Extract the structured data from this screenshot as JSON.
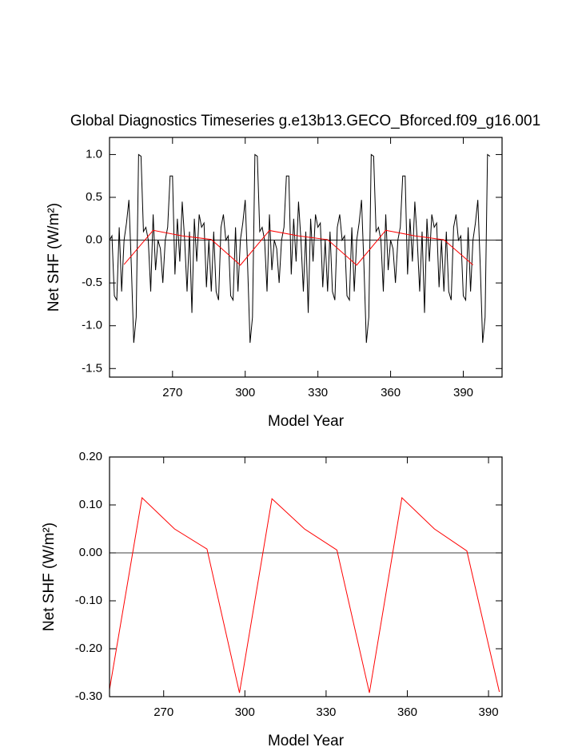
{
  "chart_data": [
    {
      "type": "line",
      "title": "Global Diagnostics Timeseries g.e13b13.GECO_Bforced.f09_g16.001",
      "xlabel": "Model Year",
      "ylabel": "Net SHF (W/m²)",
      "xlim": [
        244,
        406
      ],
      "xticks": [
        270,
        300,
        330,
        360,
        390
      ],
      "ylim": [
        -1.6,
        1.2
      ],
      "yticks": [
        {
          "value": -1.5,
          "label": "-1.5"
        },
        {
          "value": -1,
          "label": "-1.0"
        },
        {
          "value": -0.5,
          "label": "-0.5"
        },
        {
          "value": 0,
          "label": "0.0"
        },
        {
          "value": 0.5,
          "label": "0.5"
        },
        {
          "value": 1,
          "label": "1.0"
        }
      ],
      "hline": 0,
      "series": [
        {
          "color": "#000000",
          "x": [
            244,
            245,
            246,
            247,
            248,
            249,
            250,
            251,
            252,
            253,
            254,
            255,
            256,
            257,
            258,
            259,
            260,
            261,
            262,
            263,
            264,
            265,
            266,
            267,
            268,
            269,
            270,
            271,
            272,
            273,
            274,
            275,
            276,
            277,
            278,
            279,
            280,
            281,
            282,
            283,
            284,
            285,
            286,
            287,
            288,
            289,
            290,
            291,
            292,
            293,
            294,
            295,
            296,
            297,
            298,
            299,
            300,
            301,
            302,
            303,
            304,
            305,
            306,
            307,
            308,
            309,
            310,
            311,
            312,
            313,
            314,
            315,
            316,
            317,
            318,
            319,
            320,
            321,
            322,
            323,
            324,
            325,
            326,
            327,
            328,
            329,
            330,
            331,
            332,
            333,
            334,
            335,
            336,
            337,
            338,
            339,
            340,
            341,
            342,
            343,
            344,
            345,
            346,
            347,
            348,
            349,
            350,
            351,
            352,
            353,
            354,
            355,
            356,
            357,
            358,
            359,
            360,
            361,
            362,
            363,
            364,
            365,
            366,
            367,
            368,
            369,
            370,
            371,
            372,
            373,
            374,
            375,
            376,
            377,
            378,
            379,
            380,
            381,
            382,
            383,
            384,
            385,
            386,
            387,
            388,
            389,
            390,
            391,
            392,
            393,
            394,
            395,
            396,
            397,
            398,
            399,
            400,
            401
          ],
          "values": [
            0.0,
            0.05,
            -0.65,
            -0.7,
            0.15,
            -0.6,
            0.0,
            0.2,
            0.47,
            -0.3,
            -1.2,
            -0.9,
            1.0,
            0.98,
            0.1,
            0.15,
            0.0,
            -0.6,
            0.3,
            -0.35,
            0.0,
            -0.1,
            -0.5,
            0.0,
            0.15,
            0.75,
            0.75,
            -0.4,
            0.25,
            -0.25,
            0.45,
            0.0,
            -0.6,
            0.1,
            -0.85,
            0.25,
            -0.25,
            0.3,
            0.15,
            0.2,
            -0.55,
            0.0,
            -0.6,
            0.1,
            -0.6,
            -0.7,
            0.15,
            0.3,
            0.0,
            0.05,
            -0.65,
            -0.7,
            0.15,
            -0.6,
            0.0,
            0.2,
            0.47,
            -0.3,
            -1.2,
            -0.9,
            1.0,
            0.98,
            0.1,
            0.15,
            0.0,
            -0.6,
            0.3,
            -0.35,
            0.0,
            -0.1,
            -0.5,
            0.0,
            0.15,
            0.75,
            0.75,
            -0.4,
            0.25,
            -0.25,
            0.45,
            0.0,
            -0.6,
            0.1,
            -0.85,
            0.25,
            -0.25,
            0.3,
            0.15,
            0.2,
            -0.55,
            0.0,
            -0.6,
            0.1,
            -0.6,
            -0.7,
            0.15,
            0.3,
            0.0,
            0.05,
            -0.65,
            -0.7,
            0.15,
            -0.6,
            0.0,
            0.2,
            0.47,
            -0.3,
            -1.2,
            -0.9,
            1.0,
            0.98,
            0.1,
            0.15,
            0.0,
            -0.6,
            0.3,
            -0.35,
            0.0,
            -0.1,
            -0.5,
            0.0,
            0.15,
            0.75,
            0.75,
            -0.4,
            0.25,
            -0.25,
            0.45,
            0.0,
            -0.6,
            0.1,
            -0.85,
            0.25,
            -0.25,
            0.3,
            0.15,
            0.2,
            -0.55,
            0.0,
            -0.6,
            0.1,
            -0.6,
            -0.7,
            0.15,
            0.3,
            0.0,
            0.05,
            -0.65,
            -0.7,
            0.15,
            -0.6,
            0.0,
            0.2,
            0.47,
            -0.3,
            -1.2,
            -0.9,
            1.0,
            0.98
          ]
        },
        {
          "color": "#ff0000",
          "x": [
            250,
            262,
            274,
            286,
            298,
            310,
            322,
            334,
            346,
            358,
            370,
            382,
            394
          ],
          "values": [
            -0.285,
            0.115,
            0.05,
            0.008,
            -0.292,
            0.113,
            0.05,
            0.006,
            -0.292,
            0.115,
            0.05,
            0.004,
            -0.29
          ]
        }
      ]
    },
    {
      "type": "line",
      "xlabel": "Model Year",
      "ylabel": "Net SHF (W/m²)",
      "xlim": [
        250,
        395
      ],
      "xticks": [
        270,
        300,
        330,
        360,
        390
      ],
      "ylim": [
        -0.3,
        0.2
      ],
      "yticks": [
        {
          "value": -0.3,
          "label": "-0.30"
        },
        {
          "value": -0.2,
          "label": "-0.20"
        },
        {
          "value": -0.1,
          "label": "-0.10"
        },
        {
          "value": 0,
          "label": "0.00"
        },
        {
          "value": 0.1,
          "label": "0.10"
        },
        {
          "value": 0.2,
          "label": "0.20"
        }
      ],
      "hline": 0,
      "series": [
        {
          "color": "#ff0000",
          "x": [
            250,
            262,
            274,
            286,
            298,
            310,
            322,
            334,
            346,
            358,
            370,
            382,
            394
          ],
          "values": [
            -0.285,
            0.115,
            0.05,
            0.008,
            -0.292,
            0.113,
            0.05,
            0.006,
            -0.292,
            0.115,
            0.05,
            0.004,
            -0.29
          ]
        }
      ]
    }
  ]
}
